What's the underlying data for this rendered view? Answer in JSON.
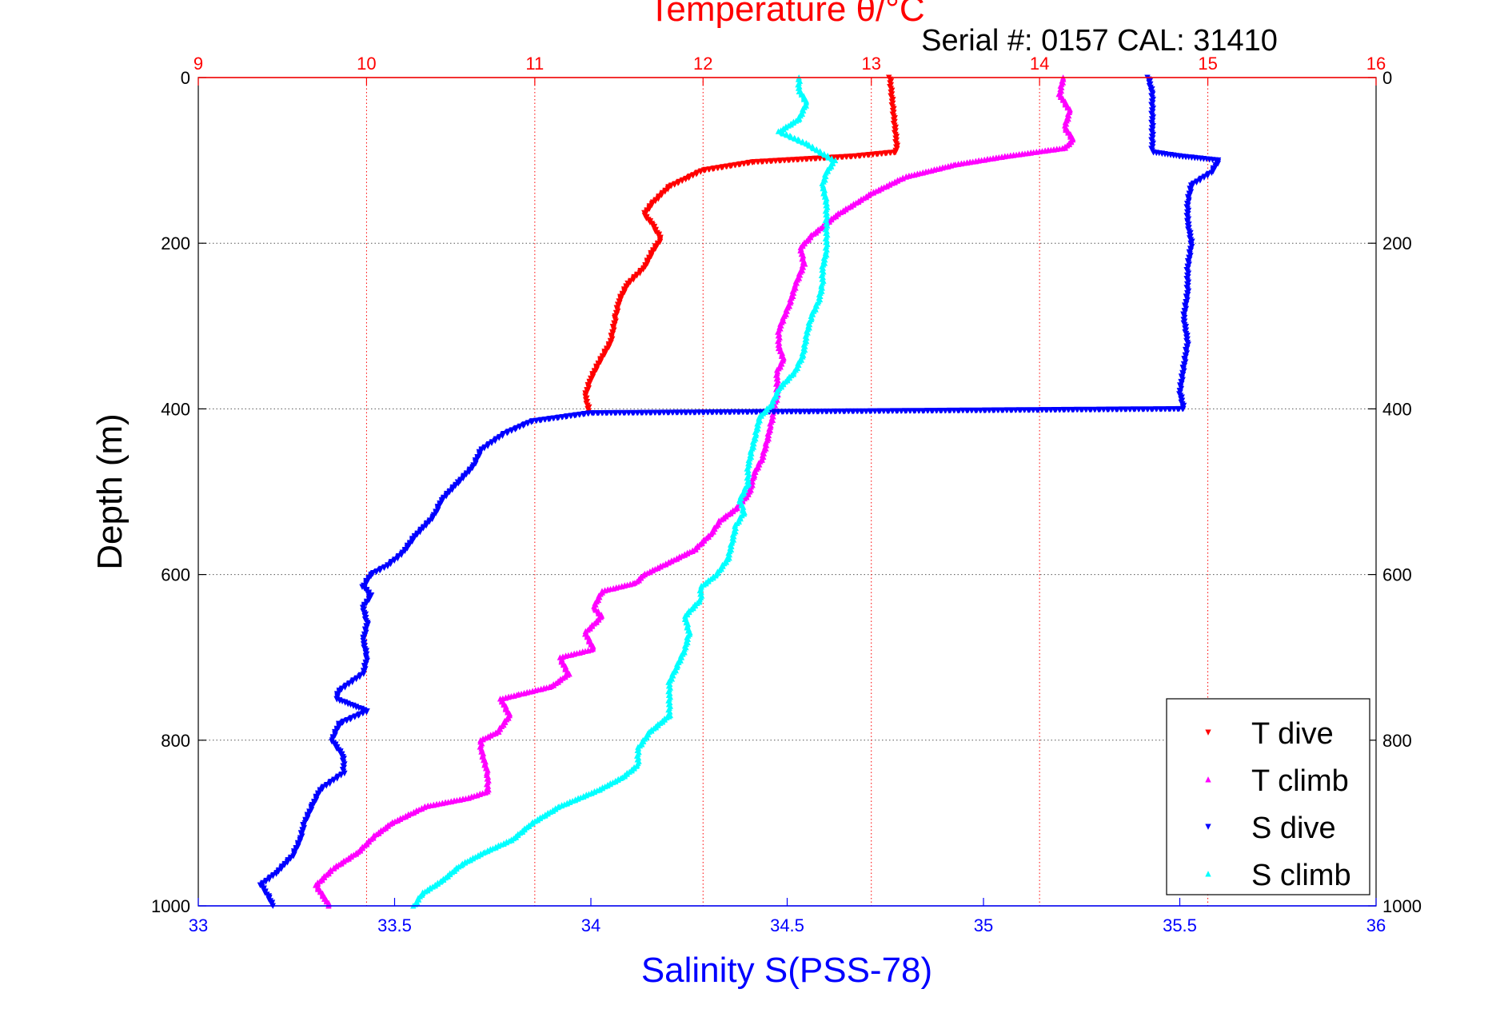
{
  "chart_data": {
    "type": "scatter",
    "title": "Temperature θ/°C",
    "subtitle": "Serial #: 0157  CAL: 31410",
    "xlabel": "Salinity S(PSS-78)",
    "ylabel": "Depth (m)",
    "grid": true,
    "legend_position": "bottom-right",
    "y_axis": {
      "range": [
        0,
        1000
      ],
      "reversed": true,
      "ticks": [
        "0",
        "200",
        "400",
        "600",
        "800",
        "1000"
      ]
    },
    "x_top_axis": {
      "quantity": "temperature",
      "range": [
        9,
        16
      ],
      "ticks": [
        "9",
        "10",
        "11",
        "12",
        "13",
        "14",
        "15",
        "16"
      ]
    },
    "x_bottom_axis": {
      "quantity": "salinity",
      "range": [
        33,
        36
      ],
      "ticks": [
        "33",
        "33.5",
        "34",
        "34.5",
        "35",
        "35.5",
        "36"
      ]
    },
    "series": [
      {
        "name": "T dive",
        "axis": "temperature",
        "color": "#ff0000",
        "marker": "triangle-down",
        "points": [
          [
            13.11,
            0
          ],
          [
            13.12,
            20
          ],
          [
            13.13,
            40
          ],
          [
            13.14,
            60
          ],
          [
            13.15,
            80
          ],
          [
            13.15,
            90
          ],
          [
            12.9,
            95
          ],
          [
            12.3,
            102
          ],
          [
            12.0,
            112
          ],
          [
            11.9,
            122
          ],
          [
            11.8,
            132
          ],
          [
            11.75,
            142
          ],
          [
            11.7,
            152
          ],
          [
            11.65,
            165
          ],
          [
            11.7,
            178
          ],
          [
            11.75,
            195
          ],
          [
            11.7,
            210
          ],
          [
            11.65,
            230
          ],
          [
            11.55,
            250
          ],
          [
            11.5,
            270
          ],
          [
            11.48,
            290
          ],
          [
            11.45,
            320
          ],
          [
            11.38,
            345
          ],
          [
            11.33,
            365
          ],
          [
            11.3,
            385
          ],
          [
            11.32,
            400
          ],
          [
            11.32,
            405
          ]
        ]
      },
      {
        "name": "T climb",
        "axis": "temperature",
        "color": "#ff00ff",
        "marker": "triangle-up",
        "points": [
          [
            9.78,
            1000
          ],
          [
            9.75,
            990
          ],
          [
            9.7,
            975
          ],
          [
            9.8,
            955
          ],
          [
            9.95,
            935
          ],
          [
            10.05,
            915
          ],
          [
            10.15,
            900
          ],
          [
            10.35,
            880
          ],
          [
            10.6,
            870
          ],
          [
            10.72,
            862
          ],
          [
            10.72,
            840
          ],
          [
            10.68,
            810
          ],
          [
            10.68,
            800
          ],
          [
            10.78,
            790
          ],
          [
            10.85,
            770
          ],
          [
            10.8,
            750
          ],
          [
            10.9,
            745
          ],
          [
            11.1,
            735
          ],
          [
            11.2,
            720
          ],
          [
            11.15,
            700
          ],
          [
            11.35,
            690
          ],
          [
            11.3,
            670
          ],
          [
            11.4,
            650
          ],
          [
            11.35,
            640
          ],
          [
            11.4,
            620
          ],
          [
            11.6,
            610
          ],
          [
            11.65,
            600
          ],
          [
            11.8,
            585
          ],
          [
            11.95,
            570
          ],
          [
            12.05,
            550
          ],
          [
            12.1,
            535
          ],
          [
            12.2,
            520
          ],
          [
            12.28,
            500
          ],
          [
            12.3,
            480
          ],
          [
            12.35,
            460
          ],
          [
            12.38,
            440
          ],
          [
            12.4,
            420
          ],
          [
            12.42,
            405
          ],
          [
            12.42,
            400
          ],
          [
            12.44,
            385
          ],
          [
            12.44,
            370
          ],
          [
            12.44,
            355
          ],
          [
            12.48,
            340
          ],
          [
            12.45,
            325
          ],
          [
            12.45,
            305
          ],
          [
            12.48,
            290
          ],
          [
            12.52,
            270
          ],
          [
            12.55,
            250
          ],
          [
            12.6,
            225
          ],
          [
            12.58,
            205
          ],
          [
            12.65,
            190
          ],
          [
            12.8,
            165
          ],
          [
            13.0,
            140
          ],
          [
            13.2,
            120
          ],
          [
            13.5,
            105
          ],
          [
            13.8,
            95
          ],
          [
            14.15,
            85
          ],
          [
            14.2,
            75
          ],
          [
            14.15,
            60
          ],
          [
            14.18,
            40
          ],
          [
            14.12,
            20
          ],
          [
            14.14,
            0
          ]
        ]
      },
      {
        "name": "S dive",
        "axis": "salinity",
        "color": "#0000ff",
        "marker": "triangle-down",
        "points": [
          [
            35.42,
            0
          ],
          [
            35.43,
            20
          ],
          [
            35.43,
            50
          ],
          [
            35.43,
            90
          ],
          [
            35.5,
            95
          ],
          [
            35.6,
            100
          ],
          [
            35.58,
            115
          ],
          [
            35.53,
            130
          ],
          [
            35.52,
            150
          ],
          [
            35.52,
            175
          ],
          [
            35.53,
            200
          ],
          [
            35.52,
            230
          ],
          [
            35.52,
            260
          ],
          [
            35.51,
            290
          ],
          [
            35.52,
            320
          ],
          [
            35.51,
            350
          ],
          [
            35.5,
            380
          ],
          [
            35.51,
            400
          ],
          [
            34.0,
            405
          ],
          [
            33.85,
            415
          ],
          [
            33.78,
            430
          ],
          [
            33.72,
            450
          ],
          [
            33.7,
            470
          ],
          [
            33.66,
            490
          ],
          [
            33.62,
            510
          ],
          [
            33.6,
            530
          ],
          [
            33.55,
            555
          ],
          [
            33.52,
            575
          ],
          [
            33.48,
            590
          ],
          [
            33.44,
            600
          ],
          [
            33.42,
            615
          ],
          [
            33.44,
            625
          ],
          [
            33.42,
            640
          ],
          [
            33.43,
            660
          ],
          [
            33.42,
            680
          ],
          [
            33.43,
            700
          ],
          [
            33.42,
            720
          ],
          [
            33.36,
            740
          ],
          [
            33.35,
            750
          ],
          [
            33.43,
            765
          ],
          [
            33.36,
            780
          ],
          [
            33.34,
            800
          ],
          [
            33.37,
            820
          ],
          [
            33.37,
            840
          ],
          [
            33.31,
            860
          ],
          [
            33.29,
            880
          ],
          [
            33.27,
            900
          ],
          [
            33.26,
            920
          ],
          [
            33.24,
            940
          ],
          [
            33.2,
            960
          ],
          [
            33.16,
            975
          ],
          [
            33.18,
            990
          ],
          [
            33.19,
            1000
          ]
        ]
      },
      {
        "name": "S climb",
        "axis": "salinity",
        "color": "#00ffff",
        "marker": "triangle-up",
        "points": [
          [
            33.55,
            1000
          ],
          [
            33.57,
            985
          ],
          [
            33.62,
            970
          ],
          [
            33.67,
            950
          ],
          [
            33.73,
            935
          ],
          [
            33.8,
            920
          ],
          [
            33.85,
            900
          ],
          [
            33.92,
            880
          ],
          [
            34.02,
            860
          ],
          [
            34.08,
            845
          ],
          [
            34.12,
            830
          ],
          [
            34.12,
            810
          ],
          [
            34.15,
            790
          ],
          [
            34.2,
            770
          ],
          [
            34.2,
            750
          ],
          [
            34.2,
            730
          ],
          [
            34.22,
            710
          ],
          [
            34.24,
            690
          ],
          [
            34.25,
            670
          ],
          [
            34.24,
            650
          ],
          [
            34.28,
            630
          ],
          [
            34.28,
            615
          ],
          [
            34.32,
            600
          ],
          [
            34.35,
            580
          ],
          [
            34.36,
            560
          ],
          [
            34.37,
            540
          ],
          [
            34.39,
            525
          ],
          [
            34.38,
            510
          ],
          [
            34.4,
            490
          ],
          [
            34.4,
            470
          ],
          [
            34.41,
            450
          ],
          [
            34.42,
            430
          ],
          [
            34.43,
            410
          ],
          [
            34.46,
            395
          ],
          [
            34.48,
            375
          ],
          [
            34.52,
            355
          ],
          [
            34.54,
            335
          ],
          [
            34.55,
            310
          ],
          [
            34.56,
            290
          ],
          [
            34.58,
            270
          ],
          [
            34.59,
            250
          ],
          [
            34.59,
            230
          ],
          [
            34.6,
            210
          ],
          [
            34.6,
            190
          ],
          [
            34.6,
            170
          ],
          [
            34.6,
            150
          ],
          [
            34.59,
            130
          ],
          [
            34.6,
            115
          ],
          [
            34.62,
            100
          ],
          [
            34.55,
            80
          ],
          [
            34.48,
            65
          ],
          [
            34.53,
            50
          ],
          [
            34.55,
            30
          ],
          [
            34.53,
            15
          ],
          [
            34.53,
            0
          ]
        ]
      }
    ]
  }
}
